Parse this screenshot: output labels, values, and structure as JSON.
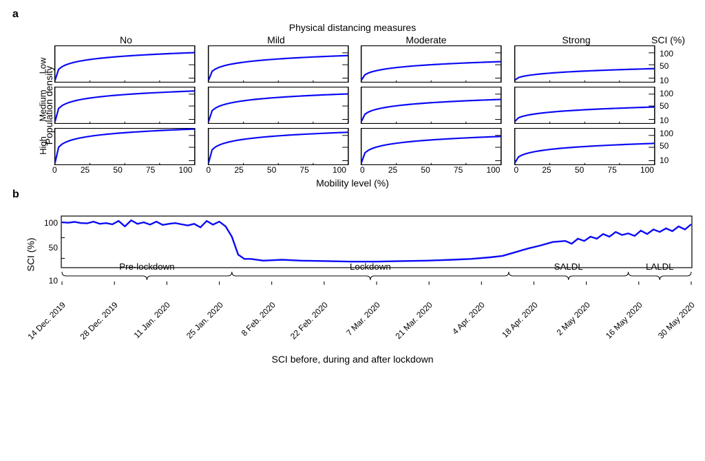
{
  "figure_a": {
    "panel_label": "a",
    "top_title": "Physical distancing measures",
    "col_labels": [
      "No",
      "Mild",
      "Moderate",
      "Strong"
    ],
    "sci_header": "SCI (%)",
    "y_axis_label": "Population density",
    "row_labels": [
      "Low",
      "Medium",
      "High"
    ],
    "x_axis_label": "Mobility level (%)",
    "x_ticks": [
      0,
      25,
      50,
      75,
      100
    ],
    "y_ticks": [
      10,
      50,
      100
    ],
    "y_tick_positions_pct": [
      88,
      52,
      20
    ],
    "line_color": "#0a0af5",
    "line_width": 2.2,
    "frame_color": "#000000",
    "background": "#ffffff",
    "scale_factors": {
      "No": {
        "Low": 0.55,
        "Medium": 0.75,
        "High": 1.05
      },
      "Mild": {
        "Low": 0.4,
        "Medium": 0.55,
        "High": 0.75
      },
      "Moderate": {
        "Low": 0.2,
        "Medium": 0.3,
        "High": 0.48
      },
      "Strong": {
        "Low": 0.08,
        "Medium": 0.12,
        "High": 0.22
      }
    }
  },
  "figure_b": {
    "panel_label": "b",
    "y_label": "SCI (%)",
    "x_title": "SCI before, during and after lockdown",
    "y_ticks": [
      10,
      50,
      100
    ],
    "y_tick_positions_pct": [
      82,
      42,
      12
    ],
    "x_tick_labels": [
      "14 Dec. 2019",
      "28 Dec. 2019",
      "11 Jan. 2020",
      "25 Jan. 2020",
      "8 Feb. 2020",
      "22 Feb. 2020",
      "7 Mar. 2020",
      "21 Mar. 2020",
      "4 Apr. 2020",
      "18 Apr. 2020",
      "2 May 2020",
      "16 May 2020",
      "30 May 2020"
    ],
    "line_color": "#0a0af5",
    "line_width": 2.4,
    "frame_color": "#000000",
    "periods": [
      {
        "label": "Pre-lockdown",
        "start": 0,
        "end": 27
      },
      {
        "label": "Lockdown",
        "start": 27,
        "end": 71
      },
      {
        "label": "SALDL",
        "start": 71,
        "end": 90
      },
      {
        "label": "LALDL",
        "start": 90,
        "end": 100
      }
    ],
    "series_pct": [
      [
        0,
        105
      ],
      [
        1,
        102
      ],
      [
        2,
        108
      ],
      [
        3,
        100
      ],
      [
        4,
        98
      ],
      [
        5,
        110
      ],
      [
        6,
        95
      ],
      [
        7,
        100
      ],
      [
        8,
        92
      ],
      [
        9,
        115
      ],
      [
        10,
        80
      ],
      [
        11,
        120
      ],
      [
        12,
        95
      ],
      [
        13,
        105
      ],
      [
        14,
        90
      ],
      [
        15,
        110
      ],
      [
        16,
        88
      ],
      [
        17,
        95
      ],
      [
        18,
        100
      ],
      [
        19,
        92
      ],
      [
        20,
        85
      ],
      [
        21,
        95
      ],
      [
        22,
        75
      ],
      [
        23,
        115
      ],
      [
        24,
        90
      ],
      [
        25,
        110
      ],
      [
        26,
        80
      ],
      [
        27,
        40
      ],
      [
        28,
        12
      ],
      [
        29,
        9
      ],
      [
        30,
        9
      ],
      [
        32,
        8
      ],
      [
        35,
        8.5
      ],
      [
        38,
        8
      ],
      [
        42,
        7.8
      ],
      [
        46,
        7.5
      ],
      [
        50,
        7.5
      ],
      [
        54,
        7.8
      ],
      [
        58,
        8
      ],
      [
        62,
        8.5
      ],
      [
        65,
        9
      ],
      [
        68,
        10
      ],
      [
        70,
        11
      ],
      [
        72,
        14
      ],
      [
        74,
        18
      ],
      [
        76,
        22
      ],
      [
        78,
        28
      ],
      [
        80,
        30
      ],
      [
        81,
        25
      ],
      [
        82,
        35
      ],
      [
        83,
        30
      ],
      [
        84,
        40
      ],
      [
        85,
        35
      ],
      [
        86,
        48
      ],
      [
        87,
        40
      ],
      [
        88,
        55
      ],
      [
        89,
        45
      ],
      [
        90,
        50
      ],
      [
        91,
        42
      ],
      [
        92,
        60
      ],
      [
        93,
        48
      ],
      [
        94,
        65
      ],
      [
        95,
        55
      ],
      [
        96,
        70
      ],
      [
        97,
        58
      ],
      [
        98,
        80
      ],
      [
        99,
        65
      ],
      [
        100,
        92
      ]
    ]
  }
}
